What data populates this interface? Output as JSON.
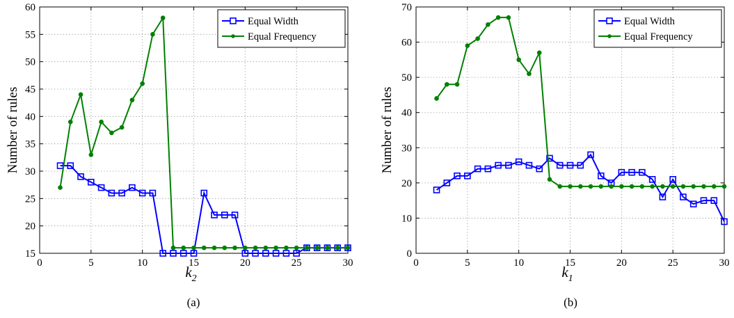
{
  "chart_data": [
    {
      "type": "line",
      "caption": "(a)",
      "xlabel": "k",
      "xlabel_subscript": "2",
      "ylabel": "Number of rules",
      "xlim": [
        0,
        30
      ],
      "ylim": [
        15,
        60
      ],
      "xticks": [
        0,
        5,
        10,
        15,
        20,
        25,
        30
      ],
      "yticks": [
        15,
        20,
        25,
        30,
        35,
        40,
        45,
        50,
        55,
        60
      ],
      "grid": true,
      "legend_position": "top-right",
      "x": [
        2,
        3,
        4,
        5,
        6,
        7,
        8,
        9,
        10,
        11,
        12,
        13,
        14,
        15,
        16,
        17,
        18,
        19,
        20,
        21,
        22,
        23,
        24,
        25,
        26,
        27,
        28,
        29,
        30
      ],
      "series": [
        {
          "name": "Equal Width",
          "color": "#0000ff",
          "marker": "square",
          "values": [
            31,
            31,
            29,
            28,
            27,
            26,
            26,
            27,
            26,
            26,
            15,
            15,
            15,
            15,
            26,
            22,
            22,
            22,
            15,
            15,
            15,
            15,
            15,
            15,
            16,
            16,
            16,
            16,
            16
          ]
        },
        {
          "name": "Equal Frequency",
          "color": "#008000",
          "marker": "dot",
          "values": [
            27,
            39,
            44,
            33,
            39,
            37,
            38,
            43,
            46,
            55,
            58,
            16,
            16,
            16,
            16,
            16,
            16,
            16,
            16,
            16,
            16,
            16,
            16,
            16,
            16,
            16,
            16,
            16,
            16
          ]
        }
      ]
    },
    {
      "type": "line",
      "caption": "(b)",
      "xlabel": "k",
      "xlabel_subscript": "1",
      "ylabel": "Number of rules",
      "xlim": [
        0,
        30
      ],
      "ylim": [
        0,
        70
      ],
      "xticks": [
        0,
        5,
        10,
        15,
        20,
        25,
        30
      ],
      "yticks": [
        0,
        10,
        20,
        30,
        40,
        50,
        60,
        70
      ],
      "grid": true,
      "legend_position": "top-right",
      "x": [
        2,
        3,
        4,
        5,
        6,
        7,
        8,
        9,
        10,
        11,
        12,
        13,
        14,
        15,
        16,
        17,
        18,
        19,
        20,
        21,
        22,
        23,
        24,
        25,
        26,
        27,
        28,
        29,
        30
      ],
      "series": [
        {
          "name": "Equal Width",
          "color": "#0000ff",
          "marker": "square",
          "values": [
            18,
            20,
            22,
            22,
            24,
            24,
            25,
            25,
            26,
            25,
            24,
            27,
            25,
            25,
            25,
            28,
            22,
            20,
            23,
            23,
            23,
            21,
            16,
            21,
            16,
            14,
            15,
            15,
            9
          ]
        },
        {
          "name": "Equal Frequency",
          "color": "#008000",
          "marker": "dot",
          "values": [
            44,
            48,
            48,
            59,
            61,
            65,
            67,
            67,
            55,
            51,
            57,
            21,
            19,
            19,
            19,
            19,
            19,
            19,
            19,
            19,
            19,
            19,
            19,
            19,
            19,
            19,
            19,
            19,
            19
          ]
        }
      ]
    }
  ]
}
